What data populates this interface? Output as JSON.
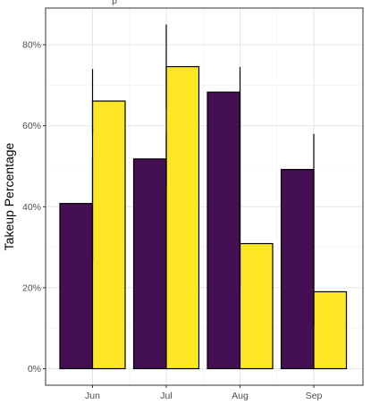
{
  "chart_data": {
    "type": "bar",
    "xlabel": "",
    "ylabel": "Takeup Percentage",
    "categories": [
      "Jun",
      "Jul",
      "Aug",
      "Sep"
    ],
    "y_ticks": [
      "0%",
      "20%",
      "40%",
      "60%",
      "80%"
    ],
    "y_tick_values": [
      0,
      20,
      40,
      60,
      80
    ],
    "ylim": [
      -4,
      89
    ],
    "grid": true,
    "legend": "none",
    "series": [
      {
        "color": "#440f53",
        "values": [
          40.8,
          51.8,
          68.3,
          49.2
        ],
        "error_low": [
          27,
          45,
          43,
          30
        ],
        "error_high": [
          52.5,
          58.5,
          74.5,
          58
        ]
      },
      {
        "color": "#fde725",
        "values": [
          66.1,
          74.6,
          30.9,
          19.0
        ],
        "error_low": [
          58,
          64,
          20,
          10.5
        ],
        "error_high": [
          74,
          85,
          43,
          30.5
        ]
      }
    ],
    "axis_label_fragment": "p"
  }
}
